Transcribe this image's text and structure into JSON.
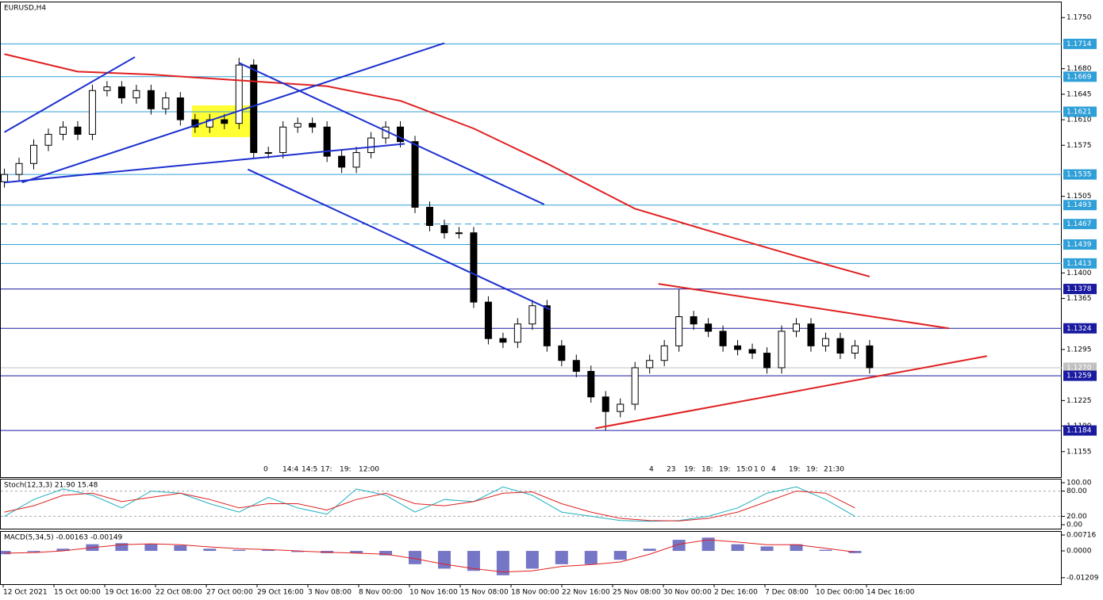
{
  "chart_data": {
    "type": "candlestick",
    "symbol": "EURUSD,H4",
    "ylim": [
      1.112,
      1.1772
    ],
    "xlim": [
      -0.3,
      72.1
    ],
    "yticks": [
      {
        "value": 1.175,
        "label": "1.1750"
      },
      {
        "value": 1.168,
        "label": "1.1680"
      },
      {
        "value": 1.1645,
        "label": "1.1645"
      },
      {
        "value": 1.161,
        "label": "1.1610"
      },
      {
        "value": 1.1575,
        "label": "1.1575"
      },
      {
        "value": 1.1505,
        "label": "1.1505"
      },
      {
        "value": 1.14,
        "label": "1.1400"
      },
      {
        "value": 1.1365,
        "label": "1.1365"
      },
      {
        "value": 1.1295,
        "label": "1.1295"
      },
      {
        "value": 1.1225,
        "label": "1.1225"
      },
      {
        "value": 1.119,
        "label": "1.1190"
      },
      {
        "value": 1.1155,
        "label": "1.1155"
      }
    ],
    "levels": [
      {
        "value": 1.1714,
        "label": "1.1714",
        "color": "#2f9fd8",
        "dashed": false
      },
      {
        "value": 1.1669,
        "label": "1.1669",
        "color": "#2f9fd8",
        "dashed": false
      },
      {
        "value": 1.1621,
        "label": "1.1621",
        "color": "#2f9fd8",
        "dashed": false
      },
      {
        "value": 1.1535,
        "label": "1.1535",
        "color": "#2f9fd8",
        "dashed": false
      },
      {
        "value": 1.1493,
        "label": "1.1493",
        "color": "#2f9fd8",
        "dashed": false
      },
      {
        "value": 1.1467,
        "label": "1.1467",
        "color": "#2f9fd8",
        "dashed": true
      },
      {
        "value": 1.1439,
        "label": "1.1439",
        "color": "#2f9fd8",
        "dashed": false
      },
      {
        "value": 1.1413,
        "label": "1.1413",
        "color": "#2f9fd8",
        "dashed": false
      },
      {
        "value": 1.1378,
        "label": "1.1378",
        "color": "#1a1aa0",
        "dashed": false
      },
      {
        "value": 1.1324,
        "label": "1.1324",
        "color": "#1a1aa0",
        "dashed": false
      },
      {
        "value": 1.127,
        "label": "1.1270",
        "color": "#c0c0c0",
        "dashed": false
      },
      {
        "value": 1.1259,
        "label": "1.1259",
        "color": "#1a1aa0",
        "dashed": false
      },
      {
        "value": 1.1184,
        "label": "1.1184",
        "color": "#1a1aa0",
        "dashed": false
      }
    ],
    "open": [
      1.1525,
      1.1535,
      1.155,
      1.1575,
      1.159,
      1.16,
      1.159,
      1.165,
      1.1655,
      1.164,
      1.165,
      1.1625,
      1.164,
      1.161,
      1.16,
      1.161,
      1.1605,
      1.1685,
      1.1565,
      1.1565,
      1.16,
      1.1605,
      1.16,
      1.156,
      1.1545,
      1.1565,
      1.1585,
      1.16,
      1.158,
      1.149,
      1.1465,
      1.1455,
      1.1455,
      1.136,
      1.131,
      1.1305,
      1.133,
      1.1355,
      1.13,
      1.128,
      1.1265,
      1.123,
      1.121,
      1.122,
      1.127,
      1.128,
      1.13,
      1.134,
      1.133,
      1.132,
      1.13,
      1.1295,
      1.129,
      1.127,
      1.132,
      1.133,
      1.13,
      1.131,
      1.129,
      1.13
    ],
    "high": [
      1.1543,
      1.1558,
      1.1583,
      1.1598,
      1.1608,
      1.1608,
      1.1658,
      1.1663,
      1.1663,
      1.1658,
      1.1658,
      1.1648,
      1.1648,
      1.1618,
      1.1618,
      1.1618,
      1.1695,
      1.1693,
      1.1573,
      1.1608,
      1.1613,
      1.1613,
      1.1608,
      1.1568,
      1.1573,
      1.1593,
      1.1608,
      1.1608,
      1.1588,
      1.1498,
      1.1473,
      1.1463,
      1.1463,
      1.1368,
      1.1318,
      1.1338,
      1.1363,
      1.1363,
      1.1308,
      1.1288,
      1.1273,
      1.1238,
      1.1228,
      1.1278,
      1.1288,
      1.1308,
      1.1378,
      1.1348,
      1.1338,
      1.1328,
      1.1308,
      1.1303,
      1.1298,
      1.1328,
      1.1338,
      1.1338,
      1.1318,
      1.1318,
      1.1308,
      1.1308
    ],
    "low": [
      1.1517,
      1.1527,
      1.1542,
      1.1567,
      1.1582,
      1.1582,
      1.1582,
      1.1642,
      1.1632,
      1.1632,
      1.1617,
      1.1617,
      1.1602,
      1.1592,
      1.1592,
      1.1597,
      1.1597,
      1.1557,
      1.1557,
      1.1557,
      1.1592,
      1.1592,
      1.1552,
      1.1537,
      1.1537,
      1.1557,
      1.1577,
      1.1572,
      1.1482,
      1.1457,
      1.1447,
      1.1447,
      1.1352,
      1.1302,
      1.1297,
      1.1297,
      1.1322,
      1.1292,
      1.1272,
      1.1257,
      1.1222,
      1.1184,
      1.1202,
      1.1212,
      1.1262,
      1.1272,
      1.1292,
      1.1322,
      1.1312,
      1.1292,
      1.1287,
      1.1282,
      1.1262,
      1.1262,
      1.1312,
      1.1292,
      1.1292,
      1.1282,
      1.1282,
      1.1262
    ],
    "close": [
      1.1535,
      1.155,
      1.1575,
      1.159,
      1.16,
      1.159,
      1.165,
      1.1655,
      1.164,
      1.165,
      1.1625,
      1.164,
      1.161,
      1.16,
      1.161,
      1.1605,
      1.1685,
      1.1565,
      1.1565,
      1.16,
      1.1605,
      1.16,
      1.156,
      1.1545,
      1.1565,
      1.1585,
      1.16,
      1.158,
      1.149,
      1.1465,
      1.1455,
      1.1455,
      1.136,
      1.131,
      1.1305,
      1.133,
      1.1355,
      1.13,
      1.128,
      1.1265,
      1.123,
      1.121,
      1.122,
      1.127,
      1.128,
      1.13,
      1.134,
      1.133,
      1.132,
      1.13,
      1.1295,
      1.129,
      1.127,
      1.132,
      1.133,
      1.13,
      1.131,
      1.129,
      1.13,
      1.127
    ],
    "overlays": [
      {
        "color": "#e02020",
        "x": [
          0,
          5,
          10,
          16,
          22,
          27,
          32,
          37,
          43,
          48,
          54,
          59
        ],
        "values": [
          1.17,
          1.1676,
          1.1672,
          1.1664,
          1.1656,
          1.1636,
          1.1598,
          1.155,
          1.1488,
          1.1458,
          1.1423,
          1.1395
        ]
      }
    ],
    "trendlines": [
      {
        "color": "#1c2fd0",
        "points": [
          [
            1.2,
            1.1524
          ],
          [
            30,
            1.1715
          ]
        ]
      },
      {
        "color": "#1c2fd0",
        "points": [
          [
            0,
            1.1524
          ],
          [
            27.3,
            1.1577
          ]
        ]
      },
      {
        "color": "#1c2fd0",
        "points": [
          [
            0,
            1.1593
          ],
          [
            8.9,
            1.1696
          ]
        ]
      },
      {
        "color": "#1c2fd0",
        "points": [
          [
            16,
            1.1688
          ],
          [
            36.8,
            1.1494
          ]
        ]
      },
      {
        "color": "#1c2fd0",
        "points": [
          [
            16.6,
            1.1542
          ],
          [
            37.2,
            1.135
          ]
        ]
      },
      {
        "color": "#e02020",
        "points": [
          [
            44.6,
            1.1385
          ],
          [
            64.4,
            1.1324
          ]
        ]
      },
      {
        "color": "#e02020",
        "points": [
          [
            40.3,
            1.1187
          ],
          [
            67,
            1.1286
          ]
        ]
      }
    ],
    "session_marks_left": [
      "0",
      "14:4",
      "14:5",
      "17:",
      "19:",
      "12:00"
    ],
    "session_marks_right": [
      "4",
      "23",
      "19:",
      "18:",
      "19:",
      "15:0",
      "1 0",
      "4",
      "19:",
      "19:",
      "21:30"
    ],
    "time_labels": [
      "12 Oct 2021",
      "15 Oct 00:00",
      "19 Oct 16:00",
      "22 Oct 08:00",
      "27 Oct 00:00",
      "29 Oct 16:00",
      "3 Nov 08:00",
      "8 Nov 00:00",
      "10 Nov 16:00",
      "15 Nov 08:00",
      "18 Nov 00:00",
      "22 Nov 16:00",
      "25 Nov 08:00",
      "30 Nov 00:00",
      "2 Dec 16:00",
      "7 Dec 08:00",
      "10 Dec 00:00",
      "14 Dec 16:00"
    ],
    "stoch": {
      "title": "Stoch(12,3,3) 21.90 15.48",
      "ylim": [
        -9.4,
        107.5
      ],
      "yticks": [
        {
          "value": 100,
          "label": "100.00"
        },
        {
          "value": 80,
          "label": "80.00"
        },
        {
          "value": 20,
          "label": "20.00"
        },
        {
          "value": 0,
          "label": "0.00"
        }
      ],
      "levels": [
        80,
        20
      ],
      "x": [
        0,
        2,
        4,
        6,
        8,
        10,
        12,
        14,
        16,
        18,
        20,
        22,
        24,
        26,
        28,
        30,
        32,
        34,
        36,
        38,
        40,
        42,
        44,
        46,
        48,
        50,
        52,
        54,
        56,
        58
      ],
      "series": [
        {
          "color": "#20b0c0",
          "values": [
            20,
            60,
            85,
            70,
            40,
            80,
            75,
            50,
            30,
            65,
            40,
            25,
            85,
            70,
            30,
            60,
            55,
            90,
            70,
            30,
            20,
            10,
            8,
            10,
            20,
            40,
            75,
            90,
            60,
            20
          ]
        },
        {
          "color": "#e02020",
          "values": [
            30,
            45,
            70,
            75,
            55,
            65,
            75,
            60,
            40,
            50,
            50,
            35,
            60,
            75,
            50,
            45,
            55,
            75,
            78,
            50,
            30,
            15,
            10,
            9,
            15,
            30,
            55,
            80,
            75,
            40
          ]
        }
      ]
    },
    "macd": {
      "title": "MACD(5,34,5) -0.00163 -0.00149",
      "ylim": [
        -0.015,
        0.0086
      ],
      "yticks": [
        0.00716,
        {
          "value": 0,
          "label": "0.0000"
        },
        -0.01209
      ],
      "x": [
        0,
        2,
        4,
        6,
        8,
        10,
        12,
        14,
        16,
        18,
        20,
        22,
        24,
        26,
        28,
        30,
        32,
        34,
        36,
        38,
        40,
        42,
        44,
        46,
        48,
        50,
        52,
        54,
        56,
        58
      ],
      "histogram": {
        "color": "#1a1aa0",
        "values": [
          -0.0015,
          -0.0005,
          0.001,
          0.003,
          0.0035,
          0.003,
          0.0025,
          0.001,
          0.0005,
          0.0005,
          -0.0005,
          -0.001,
          -0.001,
          -0.002,
          -0.006,
          -0.008,
          -0.009,
          -0.011,
          -0.008,
          -0.006,
          -0.006,
          -0.004,
          0.001,
          0.005,
          0.006,
          0.003,
          0.002,
          0.003,
          0.0005,
          -0.001
        ]
      },
      "signal": {
        "color": "#e02020",
        "values": [
          -0.001,
          -0.0008,
          0,
          0.0015,
          0.0028,
          0.0032,
          0.0028,
          0.0018,
          0.001,
          0.0006,
          0,
          -0.0006,
          -0.001,
          -0.0015,
          -0.0035,
          -0.006,
          -0.008,
          -0.0095,
          -0.009,
          -0.007,
          -0.0062,
          -0.005,
          -0.0015,
          0.003,
          0.005,
          0.004,
          0.0028,
          0.0028,
          0.0012,
          -0.0005
        ]
      }
    }
  }
}
